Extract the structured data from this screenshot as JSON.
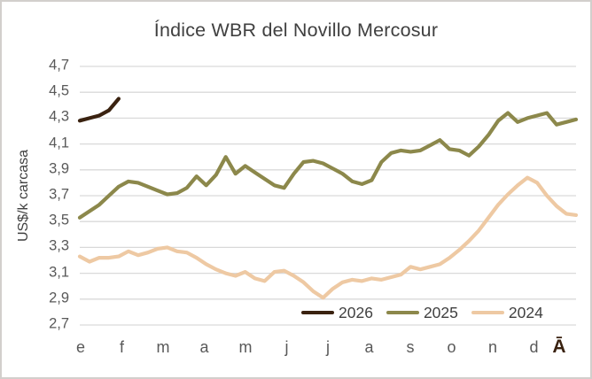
{
  "chart_data": {
    "type": "line",
    "title": "Índice WBR del Novillo Mercosur",
    "ylabel": "US$/k carcasa",
    "ylim": [
      2.7,
      4.7
    ],
    "ytick_step": 0.2,
    "ytick_labels": [
      "2,7",
      "2,9",
      "3,1",
      "3,3",
      "3,5",
      "3,7",
      "3,9",
      "4,1",
      "4,3",
      "4,5",
      "4,7"
    ],
    "xtick_labels": [
      "e",
      "f",
      "m",
      "a",
      "m",
      "j",
      "j",
      "a",
      "s",
      "o",
      "n",
      "d"
    ],
    "extra_xtick_label": "Ā",
    "grid": true,
    "legend_position": "bottom-inside",
    "series": [
      {
        "name": "2026",
        "color": "#3a2210",
        "values": [
          4.28,
          4.3,
          4.32,
          4.36,
          4.45
        ]
      },
      {
        "name": "2025",
        "color": "#8c884b",
        "values": [
          3.53,
          3.58,
          3.63,
          3.7,
          3.77,
          3.81,
          3.8,
          3.77,
          3.74,
          3.71,
          3.72,
          3.76,
          3.85,
          3.78,
          3.86,
          4.0,
          3.87,
          3.93,
          3.88,
          3.83,
          3.78,
          3.76,
          3.87,
          3.96,
          3.97,
          3.95,
          3.91,
          3.87,
          3.81,
          3.79,
          3.82,
          3.96,
          4.03,
          4.05,
          4.04,
          4.05,
          4.09,
          4.13,
          4.06,
          4.05,
          4.01,
          4.08,
          4.17,
          4.28,
          4.34,
          4.27,
          4.3,
          4.32,
          4.34,
          4.25,
          4.27,
          4.29
        ]
      },
      {
        "name": "2024",
        "color": "#eec9a3",
        "values": [
          3.23,
          3.19,
          3.22,
          3.22,
          3.23,
          3.27,
          3.24,
          3.26,
          3.29,
          3.3,
          3.27,
          3.26,
          3.22,
          3.17,
          3.13,
          3.1,
          3.08,
          3.11,
          3.06,
          3.04,
          3.11,
          3.12,
          3.08,
          3.03,
          2.96,
          2.91,
          2.98,
          3.03,
          3.05,
          3.04,
          3.06,
          3.05,
          3.07,
          3.09,
          3.15,
          3.13,
          3.15,
          3.17,
          3.22,
          3.28,
          3.35,
          3.43,
          3.53,
          3.63,
          3.71,
          3.78,
          3.84,
          3.8,
          3.7,
          3.62,
          3.56,
          3.55
        ]
      }
    ]
  },
  "colors": {
    "title_text": "#404040",
    "tick_text": "#595959",
    "gridline": "#d9d9d9",
    "extra_label": "#3a2210",
    "background": "#ffffff",
    "border": "#d2cfcc"
  }
}
